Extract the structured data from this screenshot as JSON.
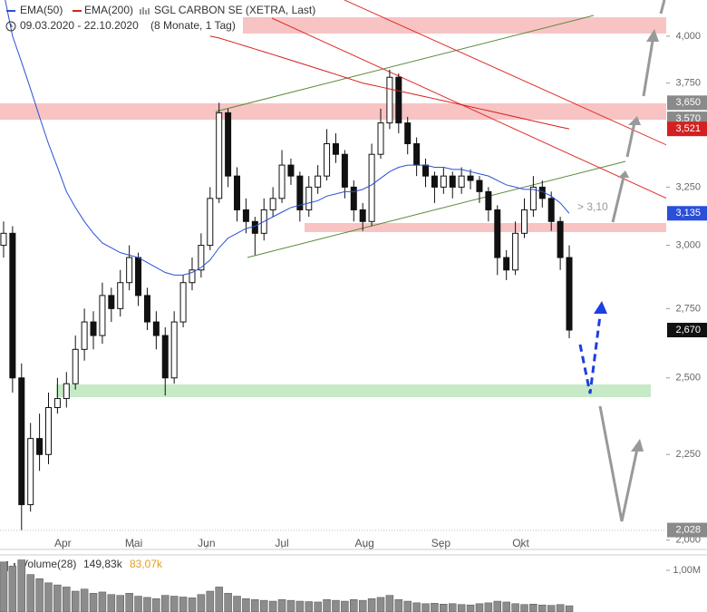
{
  "chart_data": [
    {
      "type": "candlestick",
      "title": "SGL CARBON SE (XETRA, Last)",
      "subtitle": "09.03.2020 - 22.10.2020",
      "period": "(8 Monate, 1 Tag)",
      "open": [
        3000,
        3050,
        2500,
        2100,
        2300,
        2250,
        2400,
        2430,
        2480,
        2600,
        2700,
        2650,
        2800,
        2750,
        2850,
        2950,
        2800,
        2700,
        2650,
        2500,
        2700,
        2850,
        2900,
        3000,
        3200,
        3600,
        3300,
        3150,
        3100,
        3050,
        3150,
        3200,
        3350,
        3300,
        3150,
        3250,
        3300,
        3450,
        3400,
        3250,
        3150,
        3100,
        3400,
        3550,
        3780,
        3550,
        3450,
        3350,
        3300,
        3250,
        3300,
        3250,
        3300,
        3280,
        3230,
        3150,
        2950,
        2900,
        3050,
        3150,
        3250,
        3200,
        3100,
        2950
      ],
      "high": [
        3100,
        3080,
        2550,
        2350,
        2380,
        2450,
        2500,
        2520,
        2650,
        2750,
        2740,
        2850,
        2830,
        2900,
        3000,
        2970,
        2830,
        2740,
        2680,
        2740,
        2880,
        2950,
        3050,
        3250,
        3650,
        3620,
        3340,
        3200,
        3120,
        3200,
        3250,
        3420,
        3380,
        3320,
        3300,
        3350,
        3520,
        3500,
        3420,
        3280,
        3180,
        3450,
        3620,
        3820,
        3800,
        3580,
        3480,
        3380,
        3320,
        3340,
        3320,
        3340,
        3330,
        3300,
        3250,
        3170,
        2980,
        3100,
        3200,
        3300,
        3280,
        3230,
        3120,
        3000
      ],
      "low": [
        2950,
        2450,
        2028,
        2080,
        2200,
        2220,
        2380,
        2400,
        2460,
        2560,
        2600,
        2620,
        2700,
        2720,
        2820,
        2760,
        2670,
        2600,
        2440,
        2480,
        2680,
        2820,
        2870,
        2980,
        3180,
        3250,
        3100,
        3050,
        2960,
        3020,
        3120,
        3180,
        3260,
        3100,
        3120,
        3220,
        3280,
        3360,
        3200,
        3100,
        3060,
        3080,
        3380,
        3520,
        3500,
        3400,
        3300,
        3250,
        3180,
        3220,
        3200,
        3220,
        3240,
        3180,
        3100,
        2880,
        2860,
        2880,
        3030,
        3120,
        3160,
        3060,
        2900,
        2640
      ],
      "close": [
        3050,
        2500,
        2100,
        2300,
        2250,
        2400,
        2430,
        2480,
        2600,
        2700,
        2650,
        2800,
        2750,
        2850,
        2950,
        2800,
        2700,
        2650,
        2500,
        2700,
        2850,
        2900,
        3000,
        3200,
        3600,
        3300,
        3150,
        3100,
        3050,
        3150,
        3200,
        3350,
        3300,
        3150,
        3250,
        3300,
        3450,
        3400,
        3250,
        3150,
        3100,
        3400,
        3550,
        3780,
        3550,
        3450,
        3350,
        3300,
        3250,
        3300,
        3250,
        3300,
        3280,
        3230,
        3150,
        2950,
        2900,
        3050,
        3150,
        3250,
        3200,
        3100,
        2950,
        2670
      ],
      "series": [
        {
          "name": "EMA(50)",
          "color": "#2a4fd8",
          "values": [
            4250,
            4000,
            3860,
            3720,
            3580,
            3450,
            3340,
            3230,
            3160,
            3100,
            3050,
            3010,
            2990,
            2970,
            2960,
            2950,
            2930,
            2910,
            2890,
            2880,
            2880,
            2890,
            2910,
            2940,
            2990,
            3030,
            3050,
            3070,
            3080,
            3100,
            3120,
            3140,
            3160,
            3170,
            3180,
            3190,
            3210,
            3220,
            3230,
            3230,
            3240,
            3260,
            3290,
            3320,
            3340,
            3350,
            3350,
            3350,
            3340,
            3340,
            3330,
            3330,
            3320,
            3310,
            3300,
            3280,
            3260,
            3250,
            3240,
            3240,
            3230,
            3210,
            3180,
            3135
          ]
        },
        {
          "name": "EMA(200)",
          "color": "#d42020",
          "values": [
            null,
            null,
            null,
            null,
            null,
            null,
            null,
            null,
            null,
            null,
            null,
            null,
            null,
            null,
            null,
            null,
            null,
            null,
            null,
            null,
            null,
            null,
            null,
            4000,
            3990,
            3975,
            3960,
            3945,
            3930,
            3915,
            3900,
            3885,
            3870,
            3855,
            3840,
            3825,
            3810,
            3795,
            3780,
            3765,
            3750,
            3740,
            3730,
            3720,
            3710,
            3700,
            3690,
            3680,
            3670,
            3660,
            3650,
            3640,
            3630,
            3620,
            3610,
            3600,
            3590,
            3580,
            3570,
            3560,
            3550,
            3540,
            3530,
            3521
          ]
        }
      ],
      "log_y": true,
      "ylim": [
        1977,
        4204
      ],
      "yticks": [
        {
          "value": 4000,
          "label": "4,000"
        },
        {
          "value": 3750,
          "label": "3,750"
        },
        {
          "value": 3250,
          "label": "3,250"
        },
        {
          "value": 3000,
          "label": "3,000"
        },
        {
          "value": 2750,
          "label": "2,750"
        },
        {
          "value": 2500,
          "label": "2,500"
        },
        {
          "value": 2250,
          "label": "2,250"
        },
        {
          "value": 2000,
          "label": "2,000"
        }
      ],
      "xlim": [
        -0.4,
        73.8
      ],
      "xticks": [
        {
          "value": 6.6,
          "label": "Apr"
        },
        {
          "value": 14.5,
          "label": "Mai"
        },
        {
          "value": 22.6,
          "label": "Jun"
        },
        {
          "value": 31,
          "label": "Jul"
        },
        {
          "value": 40.2,
          "label": "Aug"
        },
        {
          "value": 48.7,
          "label": "Sep"
        },
        {
          "value": 57.6,
          "label": "Okt"
        }
      ],
      "price_labels": [
        {
          "value": 3650,
          "label": "3,650",
          "color": "#8a8a8a"
        },
        {
          "value": 3570,
          "label": "3,570",
          "color": "#8a8a8a"
        },
        {
          "value": 3521,
          "label": "3,521",
          "color": "#d42020"
        },
        {
          "value": 3135,
          "label": "3,135",
          "color": "#2a4fd8"
        },
        {
          "value": 2670,
          "label": "2,670",
          "color": "#111111"
        },
        {
          "value": 2028,
          "label": "2,028",
          "color": "#8a8a8a"
        }
      ],
      "annotation": "> 3,10",
      "grid": false
    },
    {
      "type": "bar",
      "name": "Volume(28)",
      "legend_values": [
        "149,83k",
        "83,07k"
      ],
      "color": "#8c8c8c",
      "values": [
        1200,
        1100,
        1250,
        900,
        800,
        700,
        650,
        600,
        500,
        550,
        450,
        480,
        420,
        400,
        450,
        380,
        350,
        320,
        400,
        380,
        360,
        340,
        420,
        500,
        600,
        450,
        380,
        320,
        300,
        280,
        260,
        300,
        280,
        260,
        250,
        240,
        300,
        280,
        260,
        300,
        280,
        320,
        350,
        400,
        300,
        260,
        220,
        200,
        210,
        190,
        200,
        180,
        170,
        200,
        220,
        260,
        240,
        200,
        180,
        190,
        170,
        160,
        180,
        150
      ],
      "ylim": [
        0,
        1370
      ],
      "yticks": [
        {
          "value": 1000,
          "label": "1,00M"
        }
      ]
    }
  ]
}
